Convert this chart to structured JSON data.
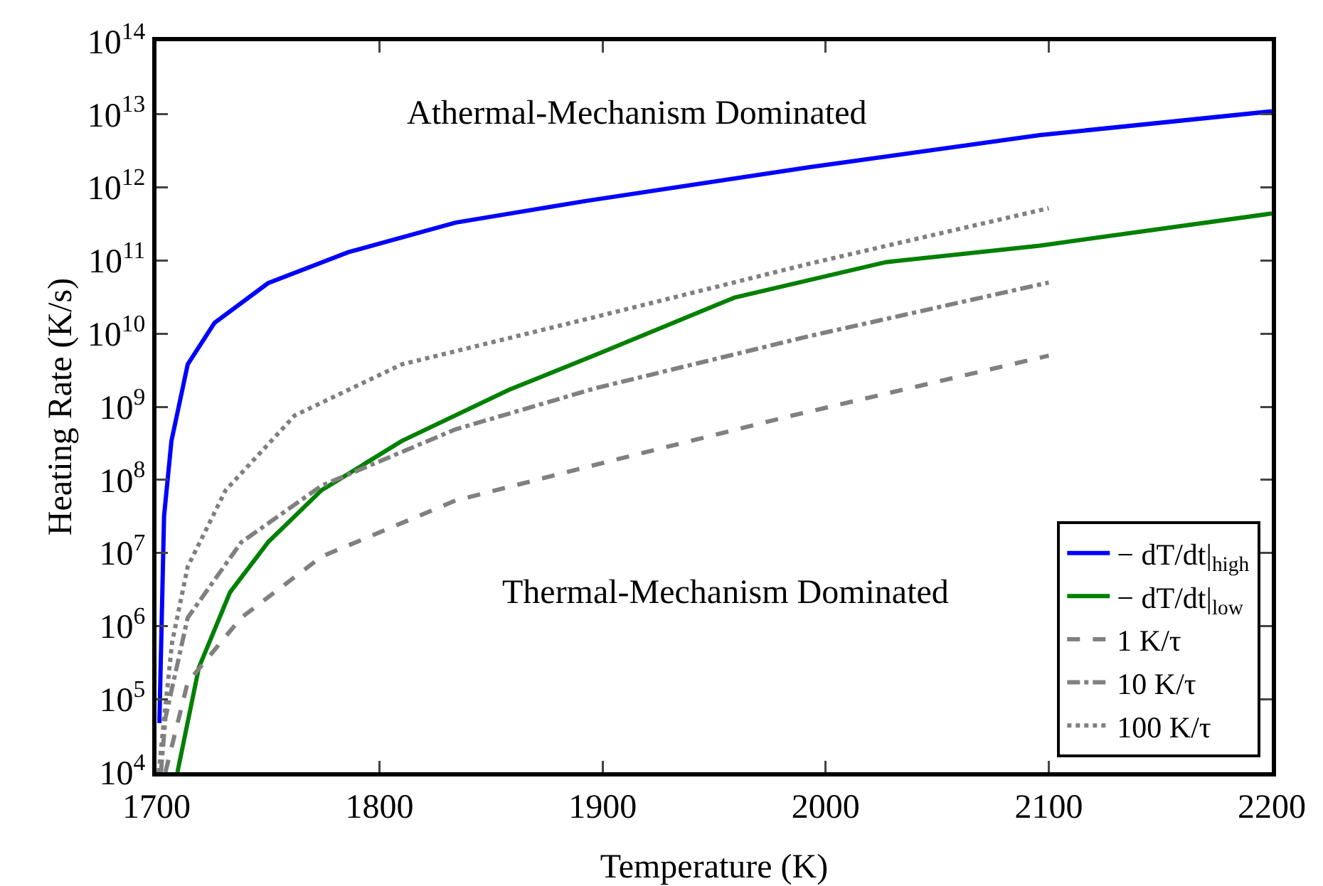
{
  "chart_data": {
    "type": "line",
    "xlabel": "Temperature (K)",
    "ylabel": "Heating Rate (K/s)",
    "log": "y",
    "grid": false,
    "legend": "bottom right",
    "xlim": [
      1700,
      2200
    ],
    "xticks": [
      1700,
      1800,
      1900,
      2000,
      2100,
      2200
    ],
    "ylim": [
      10000,
      100000000000000
    ],
    "yticks": [
      {
        "value": 10000,
        "label": "10$^{4}$"
      },
      {
        "value": 100000,
        "label": "10$^{5}$"
      },
      {
        "value": 1000000,
        "label": "10$^{6}$"
      },
      {
        "value": 10000000,
        "label": "10$^{7}$"
      },
      {
        "value": 100000000,
        "label": "10$^{8}$"
      },
      {
        "value": 1000000000,
        "label": "10$^{9}$"
      },
      {
        "value": 10000000000,
        "label": "10$^{10}$"
      },
      {
        "value": 100000000000,
        "label": "10$^{11}$"
      },
      {
        "value": 1000000000000,
        "label": "10$^{12}$"
      },
      {
        "value": 10000000000000,
        "label": "10$^{13}$"
      },
      {
        "value": 100000000000000,
        "label": "10$^{14}$"
      }
    ],
    "annotations": [
      "Athermal-Mechanism Dominated",
      "Thermal-Mechanism Dominated"
    ],
    "series": [
      {
        "name": "− dT/dt|$_{high}$",
        "color": "#0000ff",
        "line_style": "solid",
        "x": [
          1701.3,
          1703.4,
          1706.7,
          1714,
          1726,
          1750,
          1786,
          1834,
          1892,
          1993,
          2096,
          2200
        ],
        "values": [
          47000.0,
          32000000.0,
          340000000.0,
          3800000000.0,
          14000000000.0,
          49000000000.0,
          130000000000.0,
          330000000000.0,
          650000000000.0,
          1900000000000.0,
          5200000000000.0,
          11000000000000.0
        ]
      },
      {
        "name": "− dT/dt|$_{low}$",
        "color": "#008000",
        "line_style": "solid",
        "x": [
          1709.4,
          1719,
          1733,
          1750,
          1774,
          1810,
          1858,
          1900,
          1959,
          2027,
          2096,
          2200
        ],
        "values": [
          10000.0,
          270000.0,
          2900000.0,
          14000000.0,
          72000000.0,
          340000000.0,
          1700000000.0,
          5600000000.0,
          31000000000.0,
          95000000000.0,
          160000000000.0,
          440000000000.0
        ]
      },
      {
        "name": "1 K/τ",
        "color": "#808080",
        "line_style": "dashed",
        "x": [
          1704,
          1714,
          1738,
          1774,
          1834,
          1900,
          1982,
          2100
        ],
        "values": [
          10000.0,
          170000.0,
          1300000.0,
          8900000.0,
          52000000.0,
          170000000.0,
          720000000.0,
          5000000000.0
        ]
      },
      {
        "name": "10 K/τ",
        "color": "#808080",
        "line_style": "dashdot",
        "x": [
          1702,
          1704,
          1714,
          1738,
          1774,
          1834,
          1897,
          1993,
          2100
        ],
        "values": [
          10000.0,
          55000.0,
          1300000.0,
          14000000.0,
          83000000.0,
          490000000.0,
          1800000000.0,
          9300000000.0,
          50000000000.0
        ]
      },
      {
        "name": "100 K/τ",
        "color": "#808080",
        "line_style": "dotted",
        "x": [
          1701,
          1703,
          1707,
          1714,
          1731,
          1762,
          1810,
          1897,
          1993,
          2100
        ],
        "values": [
          10000.0,
          40000.0,
          600000.0,
          6500000.0,
          72000000.0,
          760000000.0,
          3800000000.0,
          17000000000.0,
          91000000000.0,
          520000000000.0
        ]
      }
    ]
  }
}
